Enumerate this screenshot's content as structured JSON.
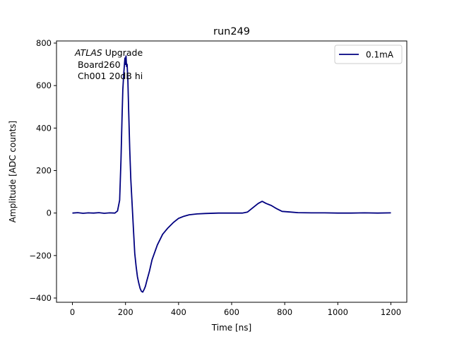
{
  "chart_data": {
    "type": "line",
    "title": "run249",
    "xlabel": "Time [ns]",
    "ylabel": "Amplitude [ADC counts]",
    "xlim": [
      -60,
      1260
    ],
    "ylim": [
      -420,
      810
    ],
    "xticks": [
      0,
      200,
      400,
      600,
      800,
      1000,
      1200
    ],
    "yticks": [
      -400,
      -200,
      0,
      200,
      400,
      600,
      800
    ],
    "grid": false,
    "legend_position": "top-right",
    "annotation": {
      "experiment": "ATLAS",
      "experiment_suffix": " Upgrade",
      "line2": " Board260",
      "line3": " Ch001 20dB hi"
    },
    "series": [
      {
        "name": "0.1mA",
        "color": "#000080",
        "points": [
          [
            0,
            0
          ],
          [
            20,
            2
          ],
          [
            40,
            -1
          ],
          [
            60,
            1
          ],
          [
            80,
            0
          ],
          [
            100,
            2
          ],
          [
            120,
            -1
          ],
          [
            140,
            1
          ],
          [
            160,
            0
          ],
          [
            170,
            10
          ],
          [
            178,
            60
          ],
          [
            183,
            250
          ],
          [
            187,
            450
          ],
          [
            190,
            580
          ],
          [
            193,
            650
          ],
          [
            196,
            700
          ],
          [
            198,
            730
          ],
          [
            200,
            700
          ],
          [
            202,
            740
          ],
          [
            204,
            690
          ],
          [
            206,
            700
          ],
          [
            209,
            620
          ],
          [
            212,
            480
          ],
          [
            216,
            300
          ],
          [
            220,
            160
          ],
          [
            225,
            40
          ],
          [
            230,
            -80
          ],
          [
            235,
            -190
          ],
          [
            240,
            -250
          ],
          [
            245,
            -300
          ],
          [
            250,
            -330
          ],
          [
            255,
            -355
          ],
          [
            260,
            -368
          ],
          [
            265,
            -372
          ],
          [
            270,
            -360
          ],
          [
            275,
            -345
          ],
          [
            280,
            -320
          ],
          [
            290,
            -275
          ],
          [
            300,
            -220
          ],
          [
            320,
            -150
          ],
          [
            340,
            -100
          ],
          [
            360,
            -70
          ],
          [
            380,
            -45
          ],
          [
            400,
            -25
          ],
          [
            420,
            -15
          ],
          [
            440,
            -8
          ],
          [
            470,
            -4
          ],
          [
            500,
            -2
          ],
          [
            550,
            0
          ],
          [
            600,
            0
          ],
          [
            640,
            0
          ],
          [
            660,
            5
          ],
          [
            680,
            25
          ],
          [
            700,
            45
          ],
          [
            715,
            55
          ],
          [
            730,
            45
          ],
          [
            750,
            35
          ],
          [
            770,
            20
          ],
          [
            790,
            8
          ],
          [
            820,
            5
          ],
          [
            850,
            2
          ],
          [
            900,
            1
          ],
          [
            950,
            1
          ],
          [
            1000,
            0
          ],
          [
            1050,
            0
          ],
          [
            1100,
            1
          ],
          [
            1150,
            0
          ],
          [
            1200,
            1
          ]
        ]
      }
    ]
  }
}
